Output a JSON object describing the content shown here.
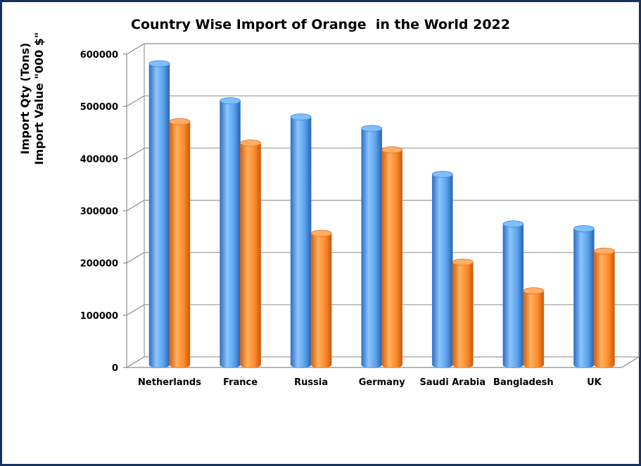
{
  "chart_data": {
    "type": "bar",
    "style": "3d-cylinder",
    "title": "Country Wise Import of Orange  in the World 2022",
    "ylabel_lines": [
      "Import Qty (Tons)",
      "Import Value \"000 $\""
    ],
    "categories": [
      "Netherlands",
      "France",
      "Russia",
      "Germany",
      "Saudi Arabia",
      "Bangladesh",
      "UK"
    ],
    "series": [
      {
        "color": "#5aa8f0",
        "values": [
          571000,
          500000,
          469000,
          447000,
          359000,
          264000,
          255000
        ]
      },
      {
        "color": "#ff8c33",
        "values": [
          460000,
          419000,
          246000,
          406000,
          191000,
          136000,
          212000
        ]
      }
    ],
    "ylim": [
      0,
      600000
    ],
    "yticks": [
      0,
      100000,
      200000,
      300000,
      400000,
      500000,
      600000
    ],
    "grid": true,
    "legend": "none"
  }
}
